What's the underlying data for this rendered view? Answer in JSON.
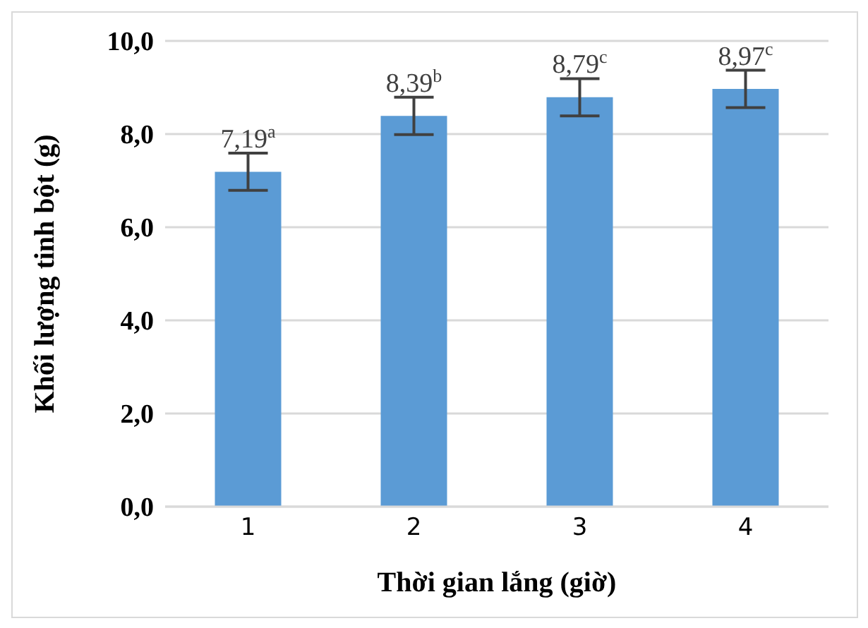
{
  "chart_data": {
    "type": "bar",
    "xlabel": "Thời gian lắng (giờ)",
    "ylabel": "Khối lượng tinh bột (g)",
    "categories": [
      "1",
      "2",
      "3",
      "4"
    ],
    "values": [
      7.19,
      8.39,
      8.79,
      8.97
    ],
    "color": "#5b9bd5",
    "errors": [
      0.4,
      0.4,
      0.4,
      0.4
    ],
    "value_labels": [
      "7,19$^{a}$",
      "8,39$^{b}$",
      "8,79$^{c}$",
      "8,97$^{c}$"
    ],
    "ylim": [
      0,
      10
    ],
    "yticks": [
      {
        "value": 0,
        "label": "0,0"
      },
      {
        "value": 2,
        "label": "2,0"
      },
      {
        "value": 4,
        "label": "4,0"
      },
      {
        "value": 6,
        "label": "6,0"
      },
      {
        "value": 8,
        "label": "8,0"
      },
      {
        "value": 10,
        "label": "10,0"
      }
    ],
    "grid": "y",
    "legend": false
  }
}
